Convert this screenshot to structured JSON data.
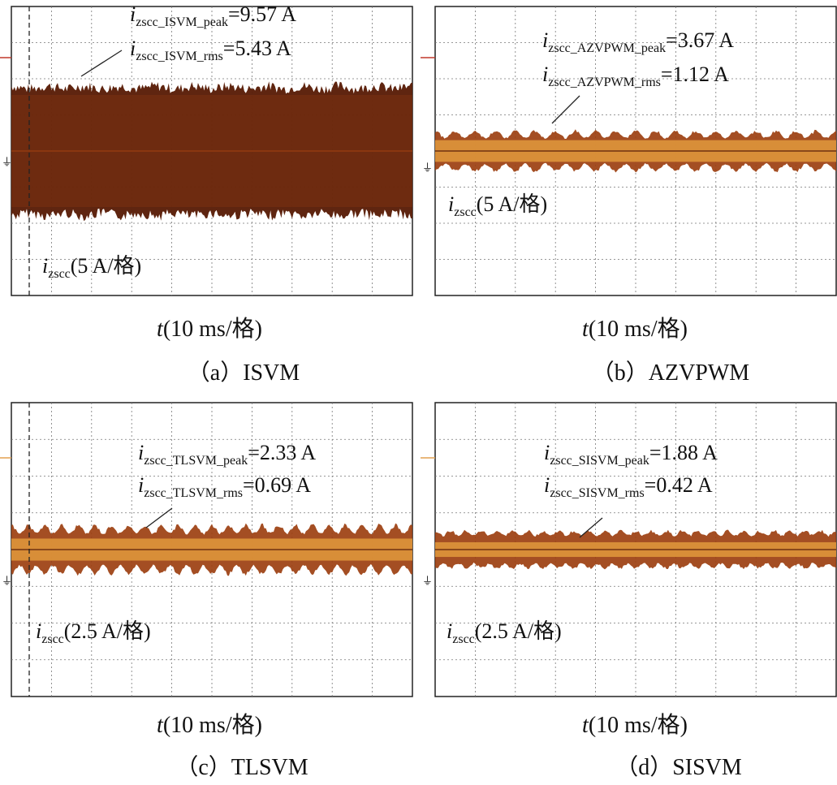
{
  "figure": {
    "style": {
      "trace_dark": "#5a1e08",
      "trace_mid": "#9c3f10",
      "trace_light": "#e29a3c",
      "marker": "#c0392b"
    }
  },
  "chart_data": [
    {
      "type": "oscilloscope",
      "panel_label": "（a）ISVM",
      "x_axis_label": "t(10 ms/格)",
      "x_axis_var": "t",
      "x_axis_unit": "(10 ms/格)",
      "trace_label": {
        "var": "i",
        "sub": "zscc",
        "unit": "(5 A/格)"
      },
      "annotations": [
        {
          "var": "i",
          "sub": "zscc_ISVM_peak",
          "value": "=9.57 A"
        },
        {
          "var": "i",
          "sub": "zscc_ISVM_rms",
          "value": "=5.43 A"
        }
      ],
      "peak_A": 9.57,
      "rms_A": 5.43,
      "volts_per_div_A": 5,
      "time_per_div_ms": 10,
      "divisions": {
        "x": 10,
        "y": 8
      },
      "envelope_peak_div": 1.94,
      "envelope_rms_div": 1.55,
      "ripple": 0.04,
      "wave_count": 11
    },
    {
      "type": "oscilloscope",
      "panel_label": "（b）AZVPWM",
      "x_axis_label": "t(10 ms/格)",
      "x_axis_var": "t",
      "x_axis_unit": "(10 ms/格)",
      "trace_label": {
        "var": "i",
        "sub": "zscc",
        "unit": "(5 A/格)"
      },
      "annotations": [
        {
          "var": "i",
          "sub": "zscc_AZVPWM_peak",
          "value": "=3.67 A"
        },
        {
          "var": "i",
          "sub": "zscc_AZVPWM_rms",
          "value": "=1.12 A"
        }
      ],
      "peak_A": 3.67,
      "rms_A": 1.12,
      "volts_per_div_A": 5,
      "time_per_div_ms": 10,
      "divisions": {
        "x": 10,
        "y": 8
      },
      "envelope_peak_div": 0.6,
      "envelope_rms_div": 0.3,
      "ripple": 0.35,
      "wave_count": 20
    },
    {
      "type": "oscilloscope",
      "panel_label": "（c）TLSVM",
      "x_axis_label": "t(10 ms/格)",
      "x_axis_var": "t",
      "x_axis_unit": "(10 ms/格)",
      "trace_label": {
        "var": "i",
        "sub": "zscc",
        "unit": "(2.5 A/格)"
      },
      "annotations": [
        {
          "var": "i",
          "sub": "zscc_TLSVM_peak",
          "value": "=2.33 A"
        },
        {
          "var": "i",
          "sub": "zscc_TLSVM_rms",
          "value": "=0.69 A"
        }
      ],
      "peak_A": 2.33,
      "rms_A": 0.69,
      "volts_per_div_A": 2.5,
      "time_per_div_ms": 10,
      "divisions": {
        "x": 10,
        "y": 8
      },
      "envelope_peak_div": 0.72,
      "envelope_rms_div": 0.3,
      "ripple": 0.35,
      "wave_count": 24
    },
    {
      "type": "oscilloscope",
      "panel_label": "（d）SISVM",
      "x_axis_label": "t(10 ms/格)",
      "x_axis_var": "t",
      "x_axis_unit": "(10 ms/格)",
      "trace_label": {
        "var": "i",
        "sub": "zscc",
        "unit": "(2.5 A/格)"
      },
      "annotations": [
        {
          "var": "i",
          "sub": "zscc_SISVM_peak",
          "value": "=1.88 A"
        },
        {
          "var": "i",
          "sub": "zscc_SISVM_rms",
          "value": "=0.42 A"
        }
      ],
      "peak_A": 1.88,
      "rms_A": 0.42,
      "volts_per_div_A": 2.5,
      "time_per_div_ms": 10,
      "divisions": {
        "x": 10,
        "y": 8
      },
      "envelope_peak_div": 0.55,
      "envelope_rms_div": 0.2,
      "ripple": 0.25,
      "wave_count": 26
    }
  ]
}
